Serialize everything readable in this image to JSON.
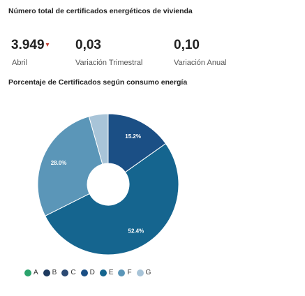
{
  "header": {
    "title": "Número total de certificados energéticos de vivienda"
  },
  "kpis": [
    {
      "value": "3.949",
      "arrow": "▾",
      "label": "Abril"
    },
    {
      "value": "0,03",
      "label": "Variación Trimestral"
    },
    {
      "value": "0,10",
      "label": "Variación Anual"
    }
  ],
  "chart_title": "Porcentaje de Certificados según consumo energía",
  "chart_data": {
    "type": "pie",
    "donut": true,
    "title": "Porcentaje de Certificados según consumo energía",
    "categories": [
      "A",
      "B",
      "C",
      "D",
      "E",
      "F",
      "G"
    ],
    "values": [
      0,
      0,
      0,
      15.2,
      52.4,
      28.0,
      4.4
    ],
    "data_labels": [
      "",
      "",
      "",
      "15.2%",
      "52.4%",
      "28.0%",
      ""
    ],
    "colors": [
      "#2ba36c",
      "#1e3a5f",
      "#2c4a73",
      "#1b4f85",
      "#15658f",
      "#5b96b8",
      "#a8c4d8"
    ],
    "legend_position": "bottom"
  }
}
